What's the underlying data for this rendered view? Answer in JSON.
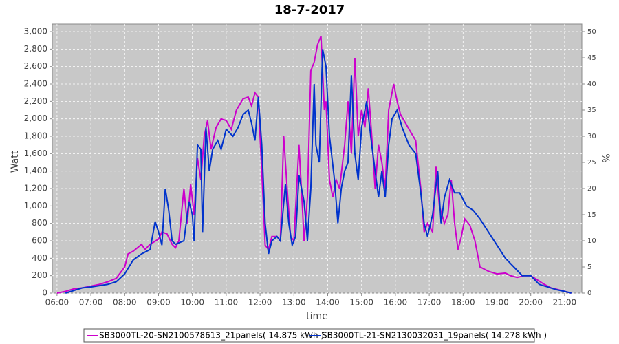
{
  "chart_data": {
    "type": "line",
    "title": "18-7-2017",
    "x_label": "time",
    "y_label": "Watt",
    "y2_label": "%",
    "xlim": [
      5.86,
      21.51
    ],
    "xticks": [
      {
        "value": 6,
        "label": "06:00"
      },
      {
        "value": 7,
        "label": "07:00"
      },
      {
        "value": 8,
        "label": "08:00"
      },
      {
        "value": 9,
        "label": "09:00"
      },
      {
        "value": 10,
        "label": "10:00"
      },
      {
        "value": 11,
        "label": "11:00"
      },
      {
        "value": 12,
        "label": "12:00"
      },
      {
        "value": 13,
        "label": "13:00"
      },
      {
        "value": 14,
        "label": "14:00"
      },
      {
        "value": 15,
        "label": "15:00"
      },
      {
        "value": 16,
        "label": "16:00"
      },
      {
        "value": 17,
        "label": "17:00"
      },
      {
        "value": 18,
        "label": "18:00"
      },
      {
        "value": 19,
        "label": "19:00"
      },
      {
        "value": 20,
        "label": "20:00"
      },
      {
        "value": 21,
        "label": "21:00"
      }
    ],
    "ylim": [
      0,
      3087
    ],
    "yticks": [
      0,
      200,
      400,
      600,
      800,
      {
        "value": 1000,
        "label": "1,000"
      },
      {
        "value": 1200,
        "label": "1,200"
      },
      {
        "value": 1400,
        "label": "1,400"
      },
      {
        "value": 1600,
        "label": "1,600"
      },
      {
        "value": 1800,
        "label": "1,800"
      },
      {
        "value": 2000,
        "label": "2,000"
      },
      {
        "value": 2200,
        "label": "2,200"
      },
      {
        "value": 2400,
        "label": "2,400"
      },
      {
        "value": 2600,
        "label": "2,600"
      },
      {
        "value": 2800,
        "label": "2,800"
      },
      {
        "value": 3000,
        "label": "3,000"
      }
    ],
    "y2lim": [
      0,
      51.45
    ],
    "y2ticks": [
      0,
      5,
      10,
      15,
      20,
      25,
      30,
      35,
      40,
      45,
      50
    ],
    "grid": true,
    "series": [
      {
        "name": "SB3000TL-20-SN2100578613_21panels( 14.875 kWh )",
        "color": "#cc00cc",
        "x": [
          6.0,
          6.25,
          6.5,
          6.75,
          7.0,
          7.25,
          7.5,
          7.75,
          8.0,
          8.1,
          8.25,
          8.5,
          8.6,
          8.75,
          9.0,
          9.1,
          9.25,
          9.4,
          9.5,
          9.6,
          9.75,
          9.85,
          9.95,
          10.05,
          10.15,
          10.25,
          10.35,
          10.45,
          10.55,
          10.7,
          10.85,
          11.0,
          11.15,
          11.3,
          11.5,
          11.65,
          11.75,
          11.85,
          11.95,
          12.0,
          12.1,
          12.15,
          12.25,
          12.35,
          12.5,
          12.6,
          12.7,
          12.8,
          12.9,
          13.0,
          13.15,
          13.25,
          13.3,
          13.4,
          13.5,
          13.6,
          13.7,
          13.8,
          13.9,
          13.95,
          14.05,
          14.15,
          14.25,
          14.35,
          14.5,
          14.6,
          14.7,
          14.8,
          14.9,
          15.0,
          15.1,
          15.2,
          15.3,
          15.4,
          15.5,
          15.6,
          15.7,
          15.8,
          15.95,
          16.05,
          16.15,
          16.3,
          16.45,
          16.6,
          16.75,
          16.85,
          16.95,
          17.1,
          17.2,
          17.3,
          17.45,
          17.55,
          17.65,
          17.75,
          17.85,
          17.95,
          18.05,
          18.2,
          18.35,
          18.5,
          18.75,
          19.0,
          19.25,
          19.4,
          19.6,
          19.8,
          20.0,
          20.2,
          20.4,
          20.6,
          20.8,
          21.0,
          21.2
        ],
        "values": [
          0,
          20,
          50,
          60,
          80,
          100,
          130,
          170,
          300,
          450,
          480,
          560,
          500,
          560,
          620,
          700,
          680,
          560,
          520,
          600,
          1200,
          800,
          1250,
          900,
          1550,
          1300,
          1800,
          1980,
          1650,
          1900,
          2000,
          1980,
          1880,
          2100,
          2230,
          2250,
          2150,
          2300,
          2250,
          1800,
          1000,
          550,
          500,
          650,
          650,
          600,
          1800,
          1200,
          650,
          600,
          1700,
          1000,
          600,
          1100,
          2550,
          2650,
          2850,
          2950,
          2100,
          2200,
          1300,
          1100,
          1300,
          1200,
          1700,
          2200,
          1600,
          2700,
          1800,
          2100,
          1900,
          2350,
          1800,
          1200,
          1700,
          1500,
          1200,
          2100,
          2400,
          2200,
          2050,
          1950,
          1850,
          1750,
          1200,
          700,
          800,
          700,
          1450,
          1000,
          800,
          900,
          1300,
          800,
          500,
          650,
          850,
          780,
          600,
          300,
          250,
          220,
          230,
          200,
          180,
          200,
          200,
          150,
          100,
          60,
          40,
          20,
          0
        ]
      },
      {
        "name": "SB3000TL-21-SN2130032031_19panels( 14.278 kWh )",
        "color": "#0033cc",
        "x": [
          6.25,
          6.5,
          6.75,
          7.0,
          7.5,
          7.75,
          8.0,
          8.25,
          8.5,
          8.75,
          8.9,
          9.0,
          9.1,
          9.2,
          9.3,
          9.4,
          9.5,
          9.75,
          9.9,
          10.0,
          10.05,
          10.15,
          10.25,
          10.3,
          10.4,
          10.5,
          10.6,
          10.75,
          10.85,
          11.0,
          11.2,
          11.35,
          11.5,
          11.65,
          11.75,
          11.85,
          11.95,
          12.05,
          12.15,
          12.25,
          12.35,
          12.5,
          12.6,
          12.75,
          12.85,
          12.95,
          13.05,
          13.15,
          13.3,
          13.4,
          13.5,
          13.6,
          13.65,
          13.75,
          13.85,
          13.95,
          14.05,
          14.2,
          14.3,
          14.4,
          14.5,
          14.6,
          14.7,
          14.8,
          14.9,
          15.0,
          15.15,
          15.3,
          15.4,
          15.5,
          15.6,
          15.7,
          15.8,
          15.9,
          16.05,
          16.2,
          16.4,
          16.6,
          16.75,
          16.85,
          16.95,
          17.1,
          17.25,
          17.35,
          17.45,
          17.6,
          17.75,
          17.9,
          18.1,
          18.3,
          18.5,
          18.75,
          19.0,
          19.25,
          19.5,
          19.75,
          20.0,
          20.25,
          20.5,
          20.75,
          21.0,
          21.2
        ],
        "values": [
          0,
          30,
          60,
          70,
          100,
          130,
          220,
          380,
          450,
          500,
          820,
          700,
          550,
          1200,
          950,
          600,
          560,
          600,
          1050,
          900,
          600,
          1700,
          1650,
          700,
          1900,
          1400,
          1650,
          1750,
          1650,
          1880,
          1800,
          1900,
          2050,
          2100,
          1950,
          1750,
          2250,
          1700,
          800,
          450,
          600,
          650,
          600,
          1250,
          800,
          550,
          650,
          1350,
          1050,
          600,
          1200,
          2400,
          1700,
          1500,
          2800,
          2600,
          1800,
          1300,
          800,
          1200,
          1400,
          1500,
          2500,
          1600,
          1300,
          1900,
          2200,
          1700,
          1400,
          1100,
          1400,
          1100,
          1700,
          2000,
          2100,
          1900,
          1700,
          1600,
          1150,
          800,
          650,
          900,
          1400,
          800,
          1100,
          1300,
          1150,
          1150,
          1000,
          950,
          850,
          700,
          550,
          400,
          300,
          200,
          200,
          100,
          70,
          40,
          20,
          0
        ]
      }
    ]
  }
}
